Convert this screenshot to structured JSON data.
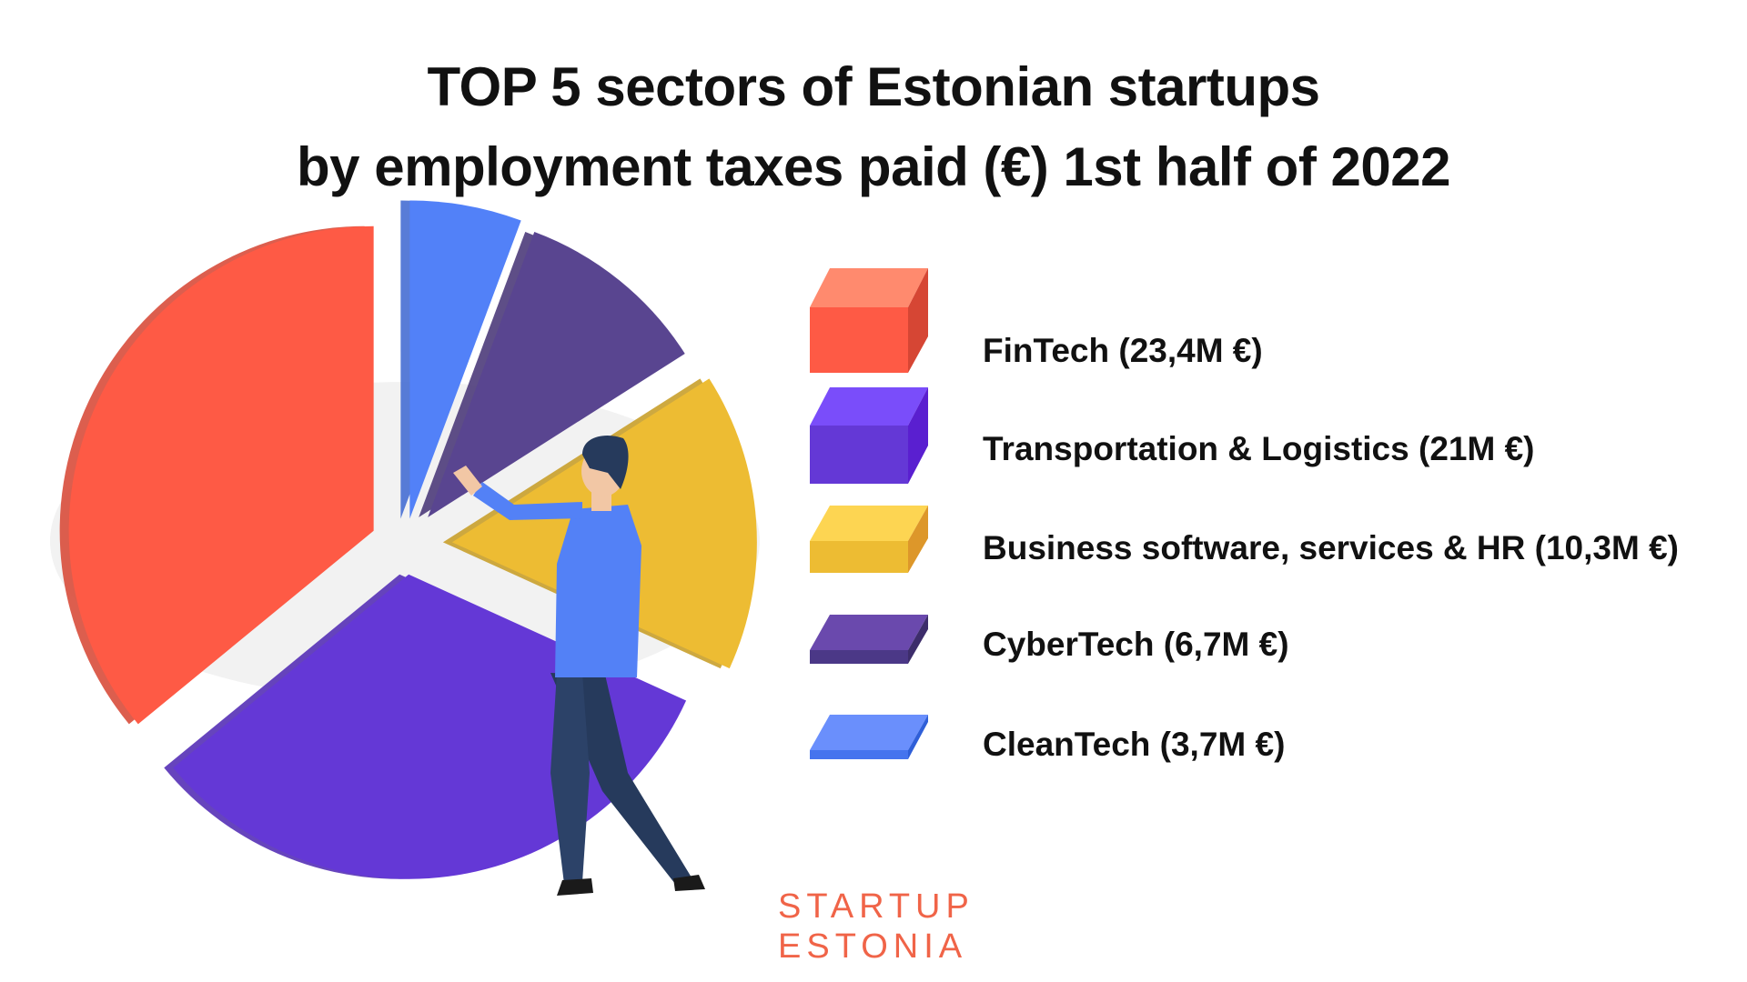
{
  "title": {
    "line1": "TOP 5 sectors of Estonian startups",
    "line2": "by employment taxes paid (€) 1st half of 2022"
  },
  "chart_data": {
    "type": "pie",
    "title": "TOP 5 sectors of Estonian startups by employment taxes paid (€) 1st half of 2022",
    "unit": "M €",
    "categories": [
      "FinTech",
      "Transportation & Logistics",
      "Business software, services & HR",
      "CyberTech",
      "CleanTech"
    ],
    "values": [
      23.4,
      21,
      10.3,
      6.7,
      3.7
    ],
    "colors": [
      "#fe5a45",
      "#6438d6",
      "#edbc33",
      "#594590",
      "#5281f8"
    ],
    "legend_position": "right"
  },
  "legend": [
    {
      "label": "FinTech (23,4M €)",
      "color": "#fe5a45"
    },
    {
      "label": "Transportation & Logistics (21M €)",
      "color": "#6438d6"
    },
    {
      "label": "Business software, services & HR (10,3M €)",
      "color": "#edbc33"
    },
    {
      "label": "CyberTech (6,7M €)",
      "color": "#594590"
    },
    {
      "label": "CleanTech (3,7M €)",
      "color": "#5281f8"
    }
  ],
  "logo": {
    "line1": "STARTUP",
    "line2": "ESTONIA"
  }
}
